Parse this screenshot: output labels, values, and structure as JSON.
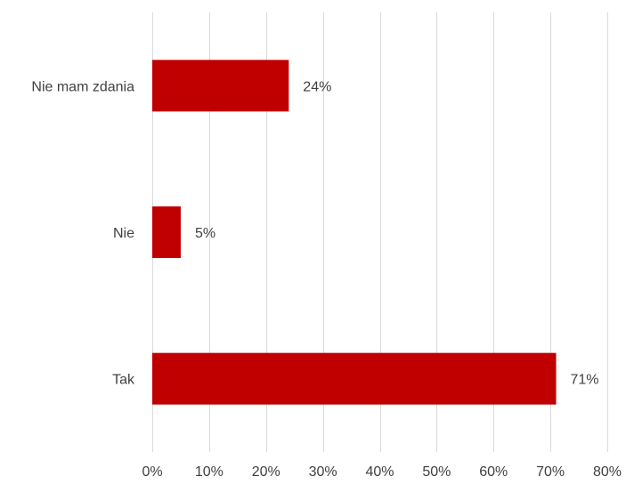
{
  "chart_data": {
    "type": "bar",
    "orientation": "horizontal",
    "categories": [
      "Nie mam zdania",
      "Nie",
      "Tak"
    ],
    "values": [
      24,
      5,
      71
    ],
    "value_labels": [
      "24%",
      "5%",
      "71%"
    ],
    "xlim": [
      0,
      80
    ],
    "x_ticks": [
      0,
      10,
      20,
      30,
      40,
      50,
      60,
      70,
      80
    ],
    "x_tick_labels": [
      "0%",
      "10%",
      "20%",
      "30%",
      "40%",
      "50%",
      "60%",
      "70%",
      "80%"
    ],
    "title": "",
    "xlabel": "",
    "ylabel": "",
    "grid": "vertical",
    "legend": "none",
    "bar_color": "#C00000",
    "grid_color": "#D9D9D9",
    "text_color": "#404040"
  }
}
